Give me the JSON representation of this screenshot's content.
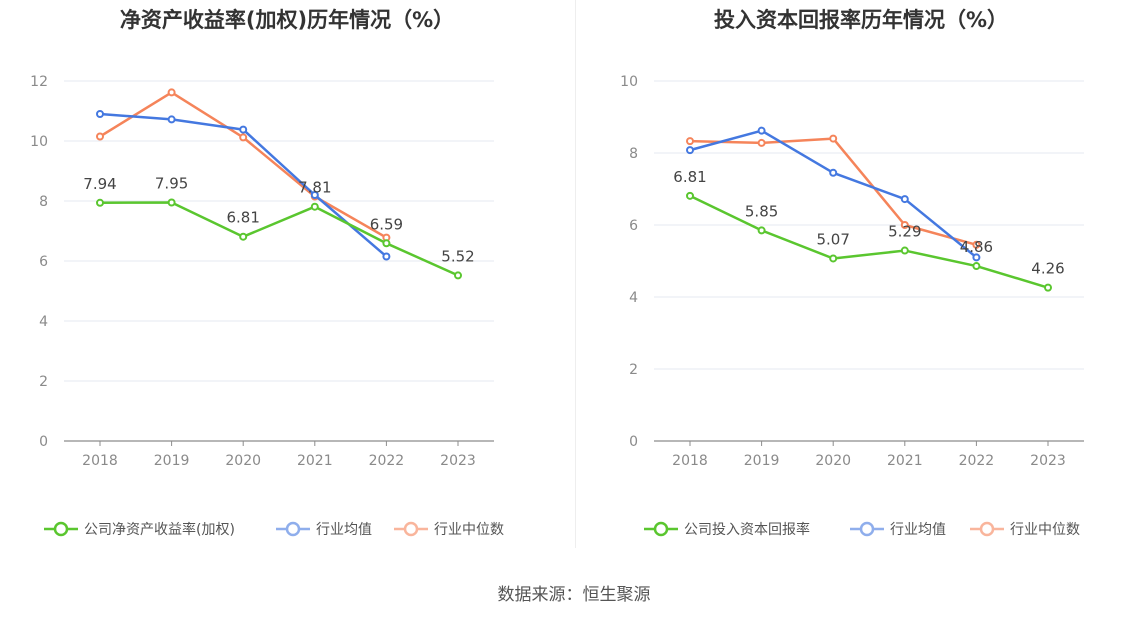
{
  "source": "数据来源：恒生聚源",
  "chart_data": [
    {
      "type": "line",
      "title": "净资产收益率(加权)历年情况（%）",
      "x": [
        "2018",
        "2019",
        "2020",
        "2021",
        "2022",
        "2023"
      ],
      "ylim": [
        0,
        12
      ],
      "yticks": [
        0,
        2,
        4,
        6,
        8,
        10,
        12
      ],
      "grid": true,
      "legend_position": "bottom",
      "series": [
        {
          "name": "公司净资产收益率(加权)",
          "color": "#5ac62f",
          "values": [
            7.94,
            7.95,
            6.81,
            7.81,
            6.59,
            5.52
          ],
          "labels": [
            "7.94",
            "7.95",
            "6.81",
            "7.81",
            "6.59",
            "5.52"
          ]
        },
        {
          "name": "行业均值",
          "color": "#4478e0",
          "values": [
            10.9,
            10.72,
            10.38,
            8.2,
            6.15,
            null
          ]
        },
        {
          "name": "行业中位数",
          "color": "#f5845a",
          "values": [
            10.15,
            11.62,
            10.12,
            8.15,
            6.78,
            null
          ]
        }
      ]
    },
    {
      "type": "line",
      "title": "投入资本回报率历年情况（%）",
      "x": [
        "2018",
        "2019",
        "2020",
        "2021",
        "2022",
        "2023"
      ],
      "ylim": [
        0,
        10
      ],
      "yticks": [
        0,
        2,
        4,
        6,
        8,
        10
      ],
      "grid": true,
      "legend_position": "bottom",
      "series": [
        {
          "name": "公司投入资本回报率",
          "color": "#5ac62f",
          "values": [
            6.81,
            5.85,
            5.07,
            5.29,
            4.86,
            4.26
          ],
          "labels": [
            "6.81",
            "5.85",
            "5.07",
            "5.29",
            "4.86",
            "4.26"
          ]
        },
        {
          "name": "行业均值",
          "color": "#4478e0",
          "values": [
            8.08,
            8.62,
            7.45,
            6.72,
            5.1,
            null
          ]
        },
        {
          "name": "行业中位数",
          "color": "#f5845a",
          "values": [
            8.33,
            8.28,
            8.4,
            6.0,
            5.45,
            null
          ]
        }
      ]
    }
  ]
}
